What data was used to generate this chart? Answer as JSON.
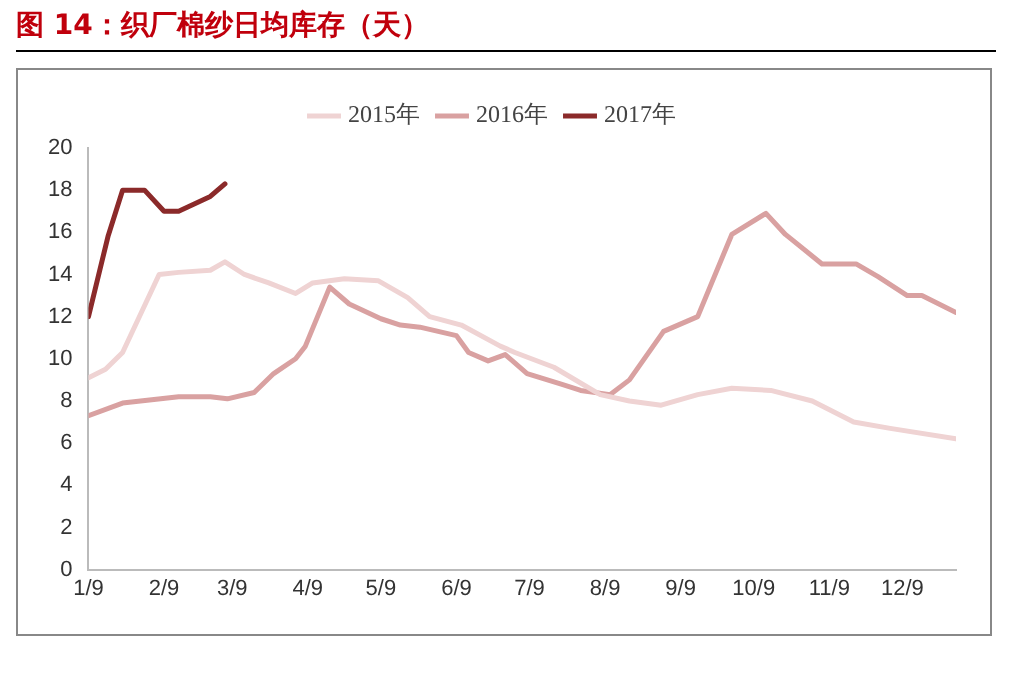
{
  "chart_data": {
    "type": "line",
    "title": "图 14：织厂棉纱日均库存（天）",
    "xlim": [
      "--01-09",
      "--12-31"
    ],
    "xticks": [
      {
        "value": "--01-09",
        "label": "1/9"
      },
      {
        "value": "--02-09",
        "label": "2/9"
      },
      {
        "value": "--03-09",
        "label": "3/9"
      },
      {
        "value": "--04-09",
        "label": "4/9"
      },
      {
        "value": "--05-09",
        "label": "5/9"
      },
      {
        "value": "--06-09",
        "label": "6/9"
      },
      {
        "value": "--07-09",
        "label": "7/9"
      },
      {
        "value": "--08-09",
        "label": "8/9"
      },
      {
        "value": "--09-09",
        "label": "9/9"
      },
      {
        "value": "--10-09",
        "label": "10/9"
      },
      {
        "value": "--11-09",
        "label": "11/9"
      },
      {
        "value": "--12-09",
        "label": "12/9"
      }
    ],
    "ylim": [
      0,
      20
    ],
    "yticks": [
      0,
      2,
      4,
      6,
      8,
      10,
      12,
      14,
      16,
      18,
      20
    ],
    "grid": false,
    "legend": "top",
    "marker": "none",
    "line_style": "solid",
    "series": [
      {
        "name": "2015年",
        "color": "#efd3d3",
        "x": [
          "--01-09",
          "--01-16",
          "--01-23",
          "--02-07",
          "--02-15",
          "--02-28",
          "--03-06",
          "--03-14",
          "--03-24",
          "--04-04",
          "--04-11",
          "--04-24",
          "--05-08",
          "--05-20",
          "--05-29",
          "--06-11",
          "--06-27",
          "--07-03",
          "--07-19",
          "--08-07",
          "--08-19",
          "--09-01",
          "--09-16",
          "--09-30",
          "--10-16",
          "--11-02",
          "--11-19",
          "--12-04",
          "--12-31"
        ],
        "values": [
          9.1,
          9.5,
          10.3,
          14.0,
          14.1,
          14.2,
          14.6,
          14.0,
          13.6,
          13.1,
          13.6,
          13.8,
          13.7,
          12.9,
          12.0,
          11.6,
          10.6,
          10.3,
          9.6,
          8.3,
          8.0,
          7.8,
          8.3,
          8.6,
          8.5,
          8.0,
          7.0,
          6.7,
          6.2
        ]
      },
      {
        "name": "2016年",
        "color": "#d9a1a1",
        "x": [
          "--01-09",
          "--01-23",
          "--02-15",
          "--02-28",
          "--03-07",
          "--03-18",
          "--03-26",
          "--04-04",
          "--04-08",
          "--04-18",
          "--04-26",
          "--05-09",
          "--05-17",
          "--05-25",
          "--06-09",
          "--06-14",
          "--06-22",
          "--06-29",
          "--07-08",
          "--07-22",
          "--07-30",
          "--08-11",
          "--08-19",
          "--09-02",
          "--09-16",
          "--09-30",
          "--10-14",
          "--10-22",
          "--11-06",
          "--11-20",
          "--11-29",
          "--12-11",
          "--12-17",
          "--12-31"
        ],
        "values": [
          7.3,
          7.9,
          8.2,
          8.2,
          8.1,
          8.4,
          9.3,
          10.0,
          10.6,
          13.4,
          12.6,
          11.9,
          11.6,
          11.5,
          11.1,
          10.3,
          9.9,
          10.2,
          9.3,
          8.8,
          8.5,
          8.3,
          9.0,
          11.3,
          12.0,
          15.9,
          16.9,
          15.9,
          14.5,
          14.5,
          13.9,
          13.0,
          13.0,
          12.2
        ]
      },
      {
        "name": "2017年",
        "color": "#8b2a2a",
        "x": [
          "--01-09",
          "--01-17",
          "--01-23",
          "--02-01",
          "--02-09",
          "--02-15",
          "--02-28",
          "--03-06"
        ],
        "values": [
          12.0,
          15.8,
          18.0,
          18.0,
          17.0,
          17.0,
          17.7,
          18.3
        ]
      }
    ]
  }
}
